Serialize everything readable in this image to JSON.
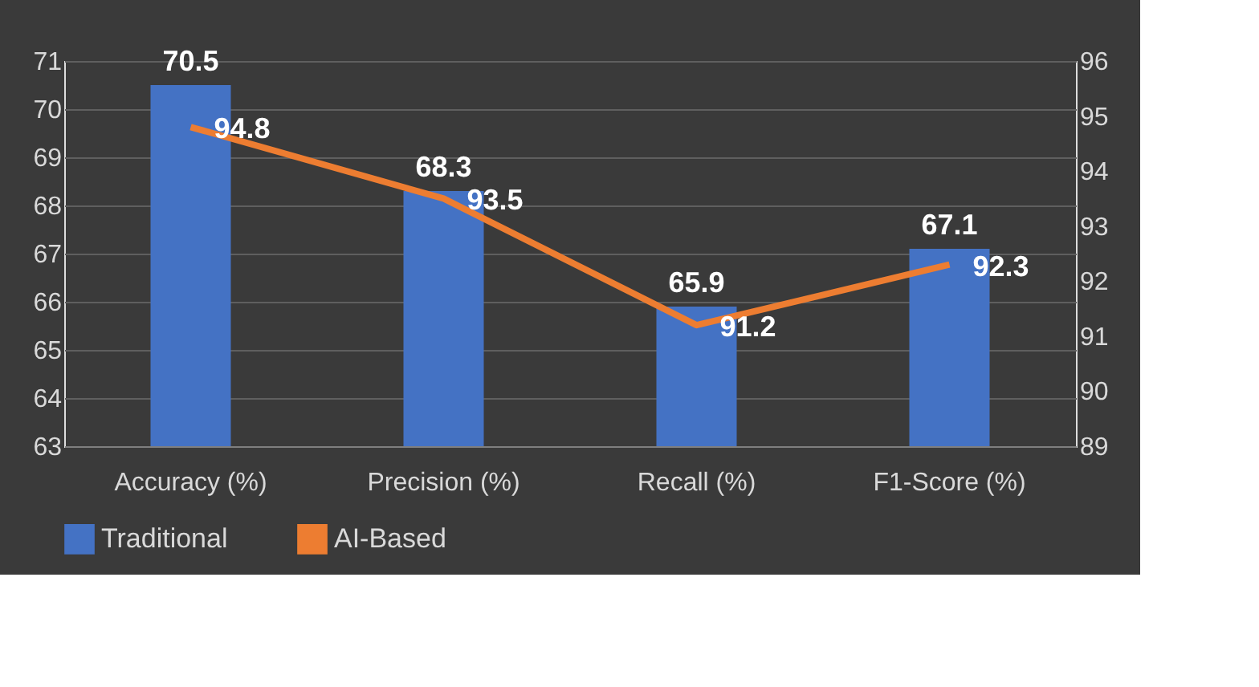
{
  "chart_data": {
    "type": "bar",
    "categories": [
      "Accuracy (%)",
      "Precision (%)",
      "Recall (%)",
      "F1-Score (%)"
    ],
    "series": [
      {
        "name": "Traditional",
        "color": "#4472c4",
        "values": [
          70.5,
          68.3,
          65.9,
          67.1
        ]
      },
      {
        "name": "AI-Based",
        "type": "line",
        "axis": "y2",
        "color": "#ed7d31",
        "values": [
          94.8,
          93.5,
          91.2,
          92.3
        ]
      }
    ],
    "ylim": [
      63,
      71
    ],
    "yticks": [
      63,
      64,
      65,
      66,
      67,
      68,
      69,
      70,
      71
    ],
    "y2lim": [
      89,
      96
    ],
    "y2ticks": [
      89,
      90,
      91,
      92,
      93,
      94,
      95,
      96
    ],
    "grid": "y",
    "legend": "bottom",
    "data_labels": true,
    "marker": "none",
    "line_style": "solid"
  }
}
